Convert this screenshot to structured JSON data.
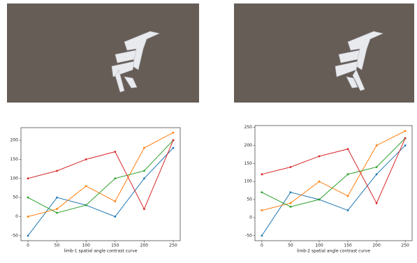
{
  "chart_data": [
    {
      "type": "line",
      "xlabel": "limb-1 spatial angle contrast curve",
      "x": [
        0,
        50,
        100,
        150,
        200,
        250
      ],
      "series": [
        {
          "color": "#1f77b4",
          "values": [
            -50,
            50,
            30,
            0,
            100,
            180
          ]
        },
        {
          "color": "#ff7f0e",
          "values": [
            0,
            20,
            80,
            40,
            180,
            220
          ]
        },
        {
          "color": "#2ca02c",
          "values": [
            50,
            10,
            30,
            100,
            120,
            200
          ]
        },
        {
          "color": "#d62728",
          "values": [
            100,
            120,
            150,
            170,
            20,
            200
          ]
        }
      ],
      "xlim": [
        -12,
        262
      ],
      "xticks": [
        0,
        50,
        100,
        150,
        200,
        250
      ],
      "ylim": [
        -63,
        233
      ],
      "yticks": [
        -50,
        0,
        50,
        100,
        150,
        200
      ]
    },
    {
      "type": "line",
      "xlabel": "limb-2 spatial angle contrast curve",
      "x": [
        0,
        50,
        100,
        150,
        200,
        250
      ],
      "series": [
        {
          "color": "#1f77b4",
          "values": [
            -50,
            70,
            50,
            20,
            120,
            200
          ]
        },
        {
          "color": "#ff7f0e",
          "values": [
            20,
            40,
            100,
            60,
            200,
            240
          ]
        },
        {
          "color": "#2ca02c",
          "values": [
            70,
            30,
            50,
            120,
            140,
            220
          ]
        },
        {
          "color": "#d62728",
          "values": [
            120,
            140,
            170,
            190,
            40,
            220
          ]
        }
      ],
      "xlim": [
        -12,
        262
      ],
      "xticks": [
        0,
        50,
        100,
        150,
        200,
        250
      ],
      "ylim": [
        -64,
        255
      ],
      "yticks": [
        -50,
        0,
        50,
        100,
        150,
        200,
        250
      ]
    }
  ]
}
